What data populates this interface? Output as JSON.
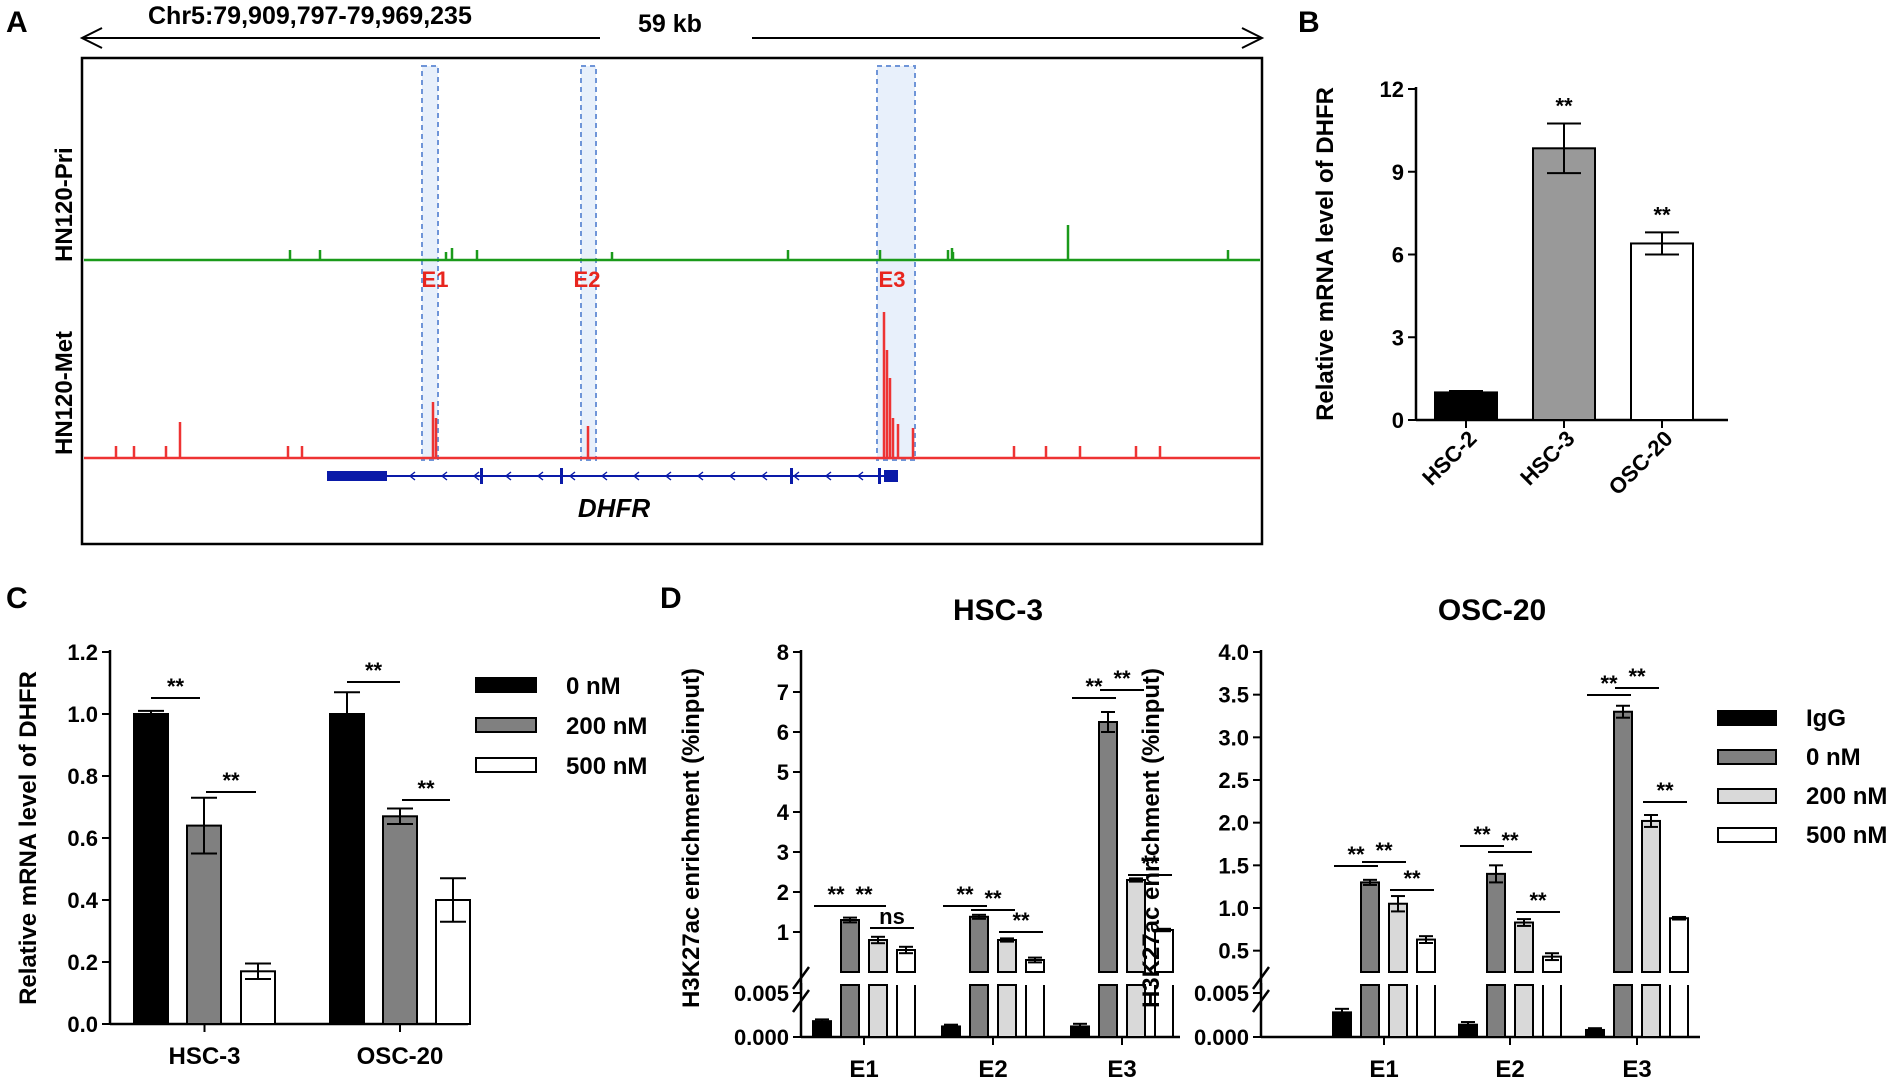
{
  "panels": {
    "A": {
      "label": "A",
      "region": "Chr5:79,909,797-79,969,235",
      "scale": "59 kb",
      "tracks": [
        "HN120-Pri",
        "HN120-Met"
      ],
      "enhancers": [
        "E1",
        "E2",
        "E3"
      ],
      "gene": "DHFR",
      "colors": {
        "pri": "#1a9a1a",
        "met": "#ee3333",
        "gene": "#0a1aa8",
        "enhancer": "#e8261f",
        "box": "#6f95d8"
      }
    },
    "B": {
      "label": "B"
    },
    "C": {
      "label": "C"
    },
    "D": {
      "label": "D"
    }
  },
  "chart_data": [
    {
      "id": "B",
      "type": "bar",
      "title": "",
      "ylabel": "Relative mRNA level of DHFR",
      "ylim": [
        0,
        12
      ],
      "yticks": [
        "0",
        "3",
        "6",
        "9",
        "12"
      ],
      "categories": [
        "HSC-2",
        "HSC-3",
        "OSC-20"
      ],
      "values": [
        1.0,
        9.85,
        6.4
      ],
      "errors": [
        0.05,
        0.9,
        0.4
      ],
      "colors": [
        "#000000",
        "#999999",
        "#ffffff"
      ],
      "significance": [
        "",
        "**",
        "**"
      ]
    },
    {
      "id": "C",
      "type": "bar",
      "ylabel": "Relative mRNA level of DHFR",
      "ylim": [
        0,
        1.2
      ],
      "yticks": [
        "0.0",
        "0.2",
        "0.4",
        "0.6",
        "0.8",
        "1.0",
        "1.2"
      ],
      "categories": [
        "HSC-3",
        "OSC-20"
      ],
      "series": [
        {
          "name": "0 nM",
          "color": "#000000",
          "values": [
            1.0,
            1.0
          ],
          "errors": [
            0.01,
            0.07
          ]
        },
        {
          "name": "200 nM",
          "color": "#808080",
          "values": [
            0.64,
            0.67
          ],
          "errors": [
            0.09,
            0.025
          ]
        },
        {
          "name": "500 nM",
          "color": "#ffffff",
          "values": [
            0.17,
            0.4
          ],
          "errors": [
            0.025,
            0.07
          ]
        }
      ],
      "significance": [
        "**",
        "**",
        "**",
        "**"
      ]
    },
    {
      "id": "D1",
      "type": "bar",
      "title": "HSC-3",
      "ylabel": "H3K27ac enrichment (%input)",
      "ylim_upper": [
        0,
        8
      ],
      "ylim_lower": [
        0,
        0.005
      ],
      "yticks_upper": [
        "1",
        "2",
        "3",
        "4",
        "5",
        "6",
        "7",
        "8"
      ],
      "yticks_lower": [
        "0.000",
        "0.005"
      ],
      "categories": [
        "E1",
        "E2",
        "E3"
      ],
      "series": [
        {
          "name": "IgG",
          "color": "#000000",
          "values": [
            0.0018,
            0.0012,
            0.0012
          ],
          "errors": [
            0.0002,
            0.0002,
            0.0003
          ]
        },
        {
          "name": "0 nM",
          "color": "#808080",
          "values": [
            1.3,
            1.38,
            6.25
          ],
          "errors": [
            0.06,
            0.05,
            0.25
          ]
        },
        {
          "name": "200 nM",
          "color": "#d9d9d9",
          "values": [
            0.8,
            0.8,
            2.3
          ],
          "errors": [
            0.08,
            0.04,
            0.04
          ]
        },
        {
          "name": "500 nM",
          "color": "#ffffff",
          "values": [
            0.55,
            0.3,
            1.05
          ],
          "errors": [
            0.08,
            0.06,
            0.03
          ]
        }
      ],
      "significance": [
        "**",
        "**",
        "ns",
        "**",
        "**",
        "**",
        "**",
        "**",
        "**"
      ]
    },
    {
      "id": "D2",
      "type": "bar",
      "title": "OSC-20",
      "ylabel": "H3K27ac enrichment (%input)",
      "ylim_upper": [
        0.25,
        4.0
      ],
      "ylim_lower": [
        0,
        0.005
      ],
      "yticks_upper": [
        "0.5",
        "1.0",
        "1.5",
        "2.0",
        "2.5",
        "3.0",
        "3.5",
        "4.0"
      ],
      "yticks_lower": [
        "0.000",
        "0.005"
      ],
      "categories": [
        "E1",
        "E2",
        "E3"
      ],
      "series": [
        {
          "name": "IgG",
          "color": "#000000",
          "values": [
            0.0028,
            0.0014,
            0.0008
          ],
          "errors": [
            0.0004,
            0.0003,
            0.0002
          ]
        },
        {
          "name": "0 nM",
          "color": "#808080",
          "values": [
            1.3,
            1.4,
            3.3
          ],
          "errors": [
            0.03,
            0.1,
            0.07
          ]
        },
        {
          "name": "200 nM",
          "color": "#d9d9d9",
          "values": [
            1.05,
            0.83,
            2.02
          ],
          "errors": [
            0.09,
            0.04,
            0.07
          ]
        },
        {
          "name": "500 nM",
          "color": "#ffffff",
          "values": [
            0.63,
            0.43,
            0.88
          ],
          "errors": [
            0.04,
            0.04,
            0.015
          ]
        }
      ],
      "significance": [
        "**",
        "**",
        "**",
        "**",
        "**",
        "**",
        "**",
        "**",
        "**"
      ]
    }
  ]
}
